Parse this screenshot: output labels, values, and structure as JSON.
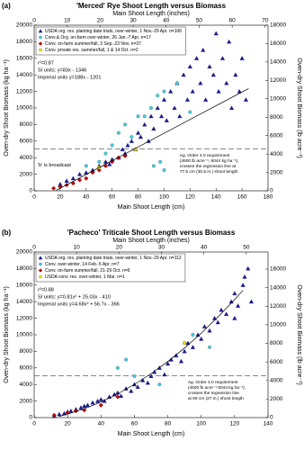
{
  "chart_data": [
    {
      "type": "scatter",
      "panel": "(a)",
      "title": "'Merced' Rye Shoot Length versus Biomass",
      "x_label": "Main Shoot Length (cm)",
      "x2_label": "Main Shoot Length (inches)",
      "y_label": "Oven-dry Shoot Biomass (kg ha⁻¹)",
      "y2_label": "Oven-dry Shoot Biomass (lb acre⁻¹)",
      "xlim": [
        0,
        180
      ],
      "xticks": [
        0,
        20,
        40,
        60,
        80,
        100,
        120,
        140,
        160,
        180
      ],
      "x2lim": [
        0,
        70.866
      ],
      "x2ticks": [
        0,
        10,
        20,
        30,
        40,
        50,
        60,
        70
      ],
      "ylim": [
        0,
        20000
      ],
      "yticks": [
        0,
        2000,
        4000,
        6000,
        8000,
        10000,
        12000,
        14000,
        16000,
        18000,
        20000
      ],
      "y2lim": [
        0,
        18000
      ],
      "y2ticks": [
        0,
        2000,
        4000,
        6000,
        8000,
        10000,
        12000,
        14000,
        16000,
        18000
      ],
      "series": [
        {
          "name": "USDA org. res. planting date trials, over-winter, 1 Nov.-29 Apr. n=106",
          "color": "#1c1c96",
          "marker": "triangle",
          "x": [
            20,
            25,
            30,
            35,
            40,
            45,
            50,
            55,
            58,
            60,
            65,
            68,
            70,
            72,
            75,
            78,
            80,
            82,
            85,
            88,
            90,
            92,
            95,
            98,
            100,
            102,
            105,
            108,
            110,
            112,
            115,
            118,
            120,
            122,
            125,
            128,
            130,
            132,
            135,
            138,
            140,
            142,
            145,
            148,
            150,
            152,
            155,
            158,
            160,
            163
          ],
          "values": [
            800,
            1200,
            1500,
            2000,
            2200,
            2500,
            3000,
            3500,
            3200,
            3800,
            4000,
            5000,
            4500,
            5500,
            6000,
            5000,
            7000,
            6500,
            8000,
            6000,
            9000,
            7500,
            10000,
            9000,
            11000,
            8500,
            12000,
            10000,
            13000,
            9000,
            14000,
            11000,
            15000,
            12000,
            16000,
            13000,
            17000,
            11000,
            15000,
            14000,
            19000,
            12000,
            16000,
            13000,
            18000,
            10000,
            14000,
            12000,
            16000,
            11000
          ]
        },
        {
          "name": "Conv.& Org. on-farm over-winter, 26 Jan.-7 Apr. n=17",
          "color": "#3fd0e0",
          "marker": "circle",
          "x": [
            40,
            50,
            55,
            60,
            65,
            70,
            75,
            80,
            85,
            90,
            95,
            100,
            110,
            120,
            92,
            97,
            100
          ],
          "values": [
            3000,
            3500,
            4500,
            5500,
            7000,
            8000,
            6500,
            9000,
            9000,
            10000,
            11500,
            12000,
            13000,
            9500,
            3000,
            3500,
            2500
          ]
        },
        {
          "name": "Conv. on-farm summer/fall, 3 Sep.-23 Nov. n=37",
          "color": "#c00000",
          "marker": "diamond",
          "x": [
            15,
            20,
            25,
            30,
            35,
            40,
            45,
            50,
            55,
            60,
            65,
            70
          ],
          "values": [
            300,
            500,
            700,
            900,
            1300,
            1500,
            2200,
            2500,
            3000,
            3500,
            4000,
            4200
          ]
        },
        {
          "name": "Conv. private res. summer/fall, 1 & 14 Oct. n=2",
          "color": "#ffe000",
          "marker": "circle",
          "x": [
            50,
            78
          ],
          "values": [
            2800,
            5000
          ]
        }
      ],
      "regression": {
        "x": [
          17,
          165
        ],
        "values": [
          65,
          12349
        ]
      },
      "threshold": 5044,
      "r2": "r²=0.87",
      "equation_si": "SI units: y=83x - 1346",
      "equation_imperial": "Imperial units y=188x - 1201",
      "broadcast_note": "'b' is broadcast",
      "requirement_note": [
        "Ag. Order 4.0 requirement",
        "(4500 lb acre⁻¹, 5044 kg ha⁻¹),",
        "crosses the regression line at",
        "77.5 cm (30.5 in.) shoot length"
      ]
    },
    {
      "type": "scatter",
      "panel": "(b)",
      "title": "'Pacheco' Triticale Shoot Length versus Biomass",
      "x_label": "Main Shoot Length (cm)",
      "x2_label": "Main Shoot Length (inches)",
      "y_label": "Oven-dry Shoot Biomass (kg ha⁻¹)",
      "y2_label": "Oven-dry Shoot Biomass (lb acre⁻¹)",
      "xlim": [
        0,
        140
      ],
      "xticks": [
        0,
        20,
        40,
        60,
        80,
        100,
        120,
        140
      ],
      "x2lim": [
        0,
        55.118
      ],
      "x2ticks": [
        0,
        10,
        20,
        30,
        40,
        50
      ],
      "ylim": [
        0,
        20000
      ],
      "yticks": [
        0,
        2000,
        4000,
        6000,
        8000,
        10000,
        12000,
        14000,
        16000,
        18000,
        20000
      ],
      "y2lim": [
        0,
        17843
      ],
      "y2ticks": [
        0,
        2000,
        4000,
        6000,
        8000,
        10000,
        12000,
        14000,
        16000
      ],
      "series": [
        {
          "name": "USDA org. res. planting date trials, over-winter, 1 Nov.-29 Apr. n=112",
          "color": "#1c1c96",
          "marker": "triangle",
          "x": [
            12,
            15,
            18,
            20,
            22,
            25,
            28,
            30,
            32,
            35,
            38,
            40,
            42,
            45,
            48,
            50,
            52,
            55,
            58,
            60,
            62,
            65,
            68,
            70,
            72,
            75,
            78,
            80,
            82,
            85,
            88,
            90,
            92,
            95,
            98,
            100,
            102,
            105,
            108,
            110,
            112,
            115,
            118,
            120,
            122,
            125,
            126,
            128,
            130,
            120
          ],
          "values": [
            200,
            400,
            500,
            700,
            800,
            1000,
            1200,
            1400,
            1500,
            1800,
            2000,
            2200,
            2000,
            2500,
            2800,
            3000,
            2600,
            3500,
            3200,
            4000,
            3700,
            4500,
            4200,
            5000,
            5500,
            6000,
            5200,
            6500,
            7000,
            7500,
            6800,
            8000,
            9000,
            8500,
            10000,
            9500,
            11000,
            10500,
            12000,
            11500,
            13000,
            12500,
            14000,
            15000,
            13500,
            16000,
            17000,
            18000,
            14000,
            12000
          ]
        },
        {
          "name": "Conv. over-winter, 14 Feb.-5 Apr. n=7",
          "color": "#3fd0e0",
          "marker": "circle",
          "x": [
            50,
            55,
            60,
            75,
            90,
            95,
            105
          ],
          "values": [
            6000,
            7000,
            5000,
            4000,
            9000,
            10000,
            8500
          ]
        },
        {
          "name": "Conv. on-farm summer/fall, 21-29 Oct. n=6",
          "color": "#c00000",
          "marker": "diamond",
          "x": [
            12,
            20,
            25,
            30,
            40,
            50
          ],
          "values": [
            300,
            600,
            800,
            900,
            1500,
            2500
          ]
        },
        {
          "name": "USDA conv. res. over-winter, 1 Mar. n=1",
          "color": "#ffe000",
          "marker": "circle",
          "x": [
            90
          ],
          "values": [
            9000
          ]
        }
      ],
      "regression": {
        "x": [
          15,
          20,
          30,
          40,
          50,
          60,
          70,
          80,
          90,
          100,
          110,
          120,
          125
        ],
        "values": [
          147,
          415,
          1070,
          1887,
          2867,
          4008,
          5311,
          6776,
          8404,
          10193,
          12144,
          14258,
          15375
        ]
      },
      "threshold": 5044,
      "r2": "r²=0.88",
      "equation_si": "SI units: y=0.81x² + 25.03x - 410",
      "equation_imperial": "Imperial units y=4.68x² + 56.7x - 366",
      "requirement_note": [
        "Ag. Order 4.0 requirement",
        "(4500 lb acre⁻¹ 5044 kg ha⁻¹),",
        "crosses the regression line",
        "at 69 cm (27 in.) shoot length"
      ]
    }
  ]
}
